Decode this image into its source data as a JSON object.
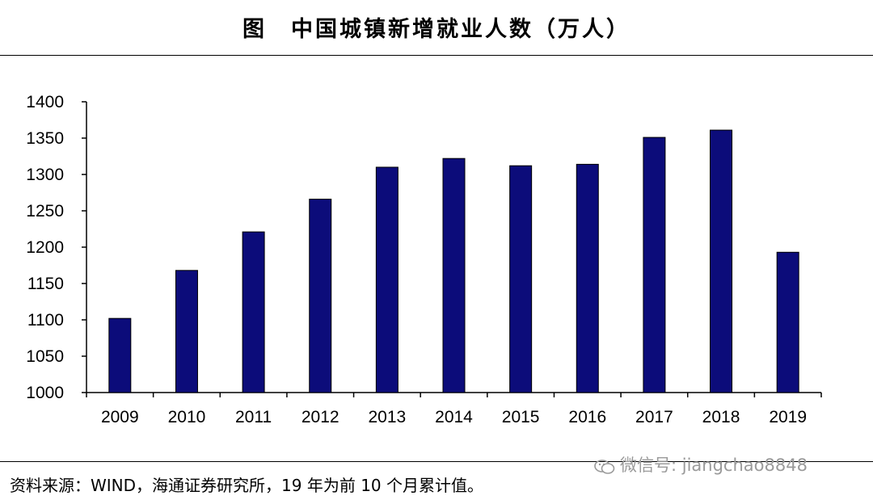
{
  "header": {
    "title": "图　中国城镇新增就业人数（万人）"
  },
  "footer": {
    "source": "资料来源：WIND，海通证券研究所，19 年为前 10 个月累计值。"
  },
  "watermark": {
    "text": "微信号: jiangchao8848",
    "icon": "wechat-icon"
  },
  "colors": {
    "bar": "#0c0c7a",
    "axis": "#000000",
    "watermark": "#9a9a9a"
  },
  "chart_data": {
    "type": "bar",
    "title": "图　中国城镇新增就业人数（万人）",
    "xlabel": "",
    "ylabel": "",
    "categories": [
      "2009",
      "2010",
      "2011",
      "2012",
      "2013",
      "2014",
      "2015",
      "2016",
      "2017",
      "2018",
      "2019"
    ],
    "values": [
      1102,
      1168,
      1221,
      1266,
      1310,
      1322,
      1312,
      1314,
      1351,
      1361,
      1193
    ],
    "ylim": [
      1000,
      1400
    ],
    "yticks": [
      1000,
      1050,
      1100,
      1150,
      1200,
      1250,
      1300,
      1350,
      1400
    ],
    "grid": false,
    "legend": "none"
  }
}
